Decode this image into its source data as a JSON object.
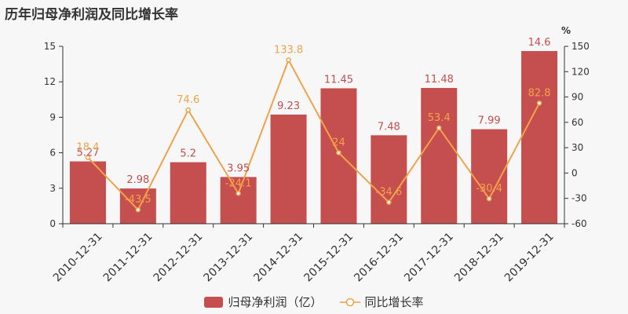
{
  "title": "历年归母净利润及同比增长率",
  "colors": {
    "bar": "#c54f4f",
    "bar_label": "#c54f4f",
    "line": "#f4a24a",
    "line_label": "#f4a24a",
    "axis": "#333333"
  },
  "chart_data": {
    "type": "bar",
    "categories": [
      "2010-12-31",
      "2011-12-31",
      "2012-12-31",
      "2013-12-31",
      "2014-12-31",
      "2015-12-31",
      "2016-12-31",
      "2017-12-31",
      "2018-12-31",
      "2019-12-31"
    ],
    "series": [
      {
        "name": "归母净利润（亿）",
        "type": "bar",
        "axis": "left",
        "values": [
          5.27,
          2.98,
          5.2,
          3.95,
          9.23,
          11.45,
          7.48,
          11.48,
          7.99,
          14.6
        ]
      },
      {
        "name": "同比增长率",
        "type": "line",
        "axis": "right",
        "values": [
          18.4,
          -43.5,
          74.6,
          -24.1,
          133.8,
          24,
          -34.6,
          53.4,
          -30.4,
          82.8
        ]
      }
    ],
    "left_axis": {
      "ylim": [
        0,
        15
      ],
      "ticks": [
        0,
        3,
        6,
        9,
        12,
        15
      ]
    },
    "right_axis": {
      "ylim": [
        -60,
        150
      ],
      "ticks": [
        -60,
        -30,
        0,
        30,
        60,
        90,
        120,
        150
      ],
      "unit": "%"
    },
    "legend_position": "bottom-center",
    "grid": false
  }
}
